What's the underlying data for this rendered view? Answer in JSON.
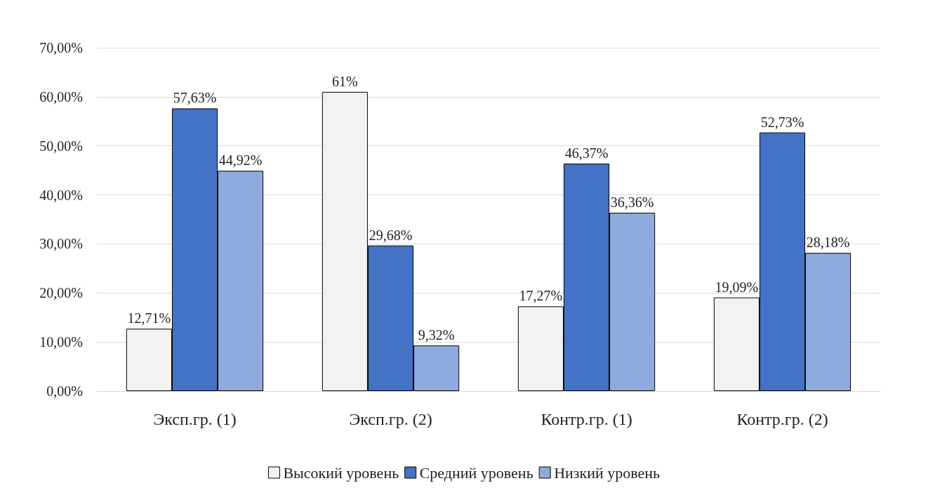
{
  "chart_data": {
    "type": "bar",
    "categories": [
      "Эксп.гр. (1)",
      "Эксп.гр. (2)",
      "Контр.гр. (1)",
      "Контр.гр. (2)"
    ],
    "series": [
      {
        "name": "Высокий уровень",
        "color": "#f2f2f2",
        "values": [
          12.71,
          61,
          17.27,
          19.09
        ],
        "value_labels": [
          "12,71%",
          "61%",
          "17,27%",
          "19,09%"
        ]
      },
      {
        "name": "Средний уровень",
        "color": "#4472c4",
        "values": [
          57.63,
          29.68,
          46.37,
          52.73
        ],
        "value_labels": [
          "57,63%",
          "29,68%",
          "46,37%",
          "52,73%"
        ]
      },
      {
        "name": "Низкий уровень",
        "color": "#8faadc",
        "values": [
          44.92,
          9.32,
          36.36,
          28.18
        ],
        "value_labels": [
          "44,92%",
          "9,32%",
          "36,36%",
          "28,18%"
        ]
      }
    ],
    "ylim": [
      0,
      70
    ],
    "yticks": [
      {
        "value": 0,
        "label": "0,00%"
      },
      {
        "value": 10,
        "label": "10,00%"
      },
      {
        "value": 20,
        "label": "20,00%"
      },
      {
        "value": 30,
        "label": "30,00%"
      },
      {
        "value": 40,
        "label": "40,00%"
      },
      {
        "value": 50,
        "label": "50,00%"
      },
      {
        "value": 60,
        "label": "60,00%"
      },
      {
        "value": 70,
        "label": "70,00%"
      }
    ],
    "grid": "y",
    "legend": "bottom"
  }
}
